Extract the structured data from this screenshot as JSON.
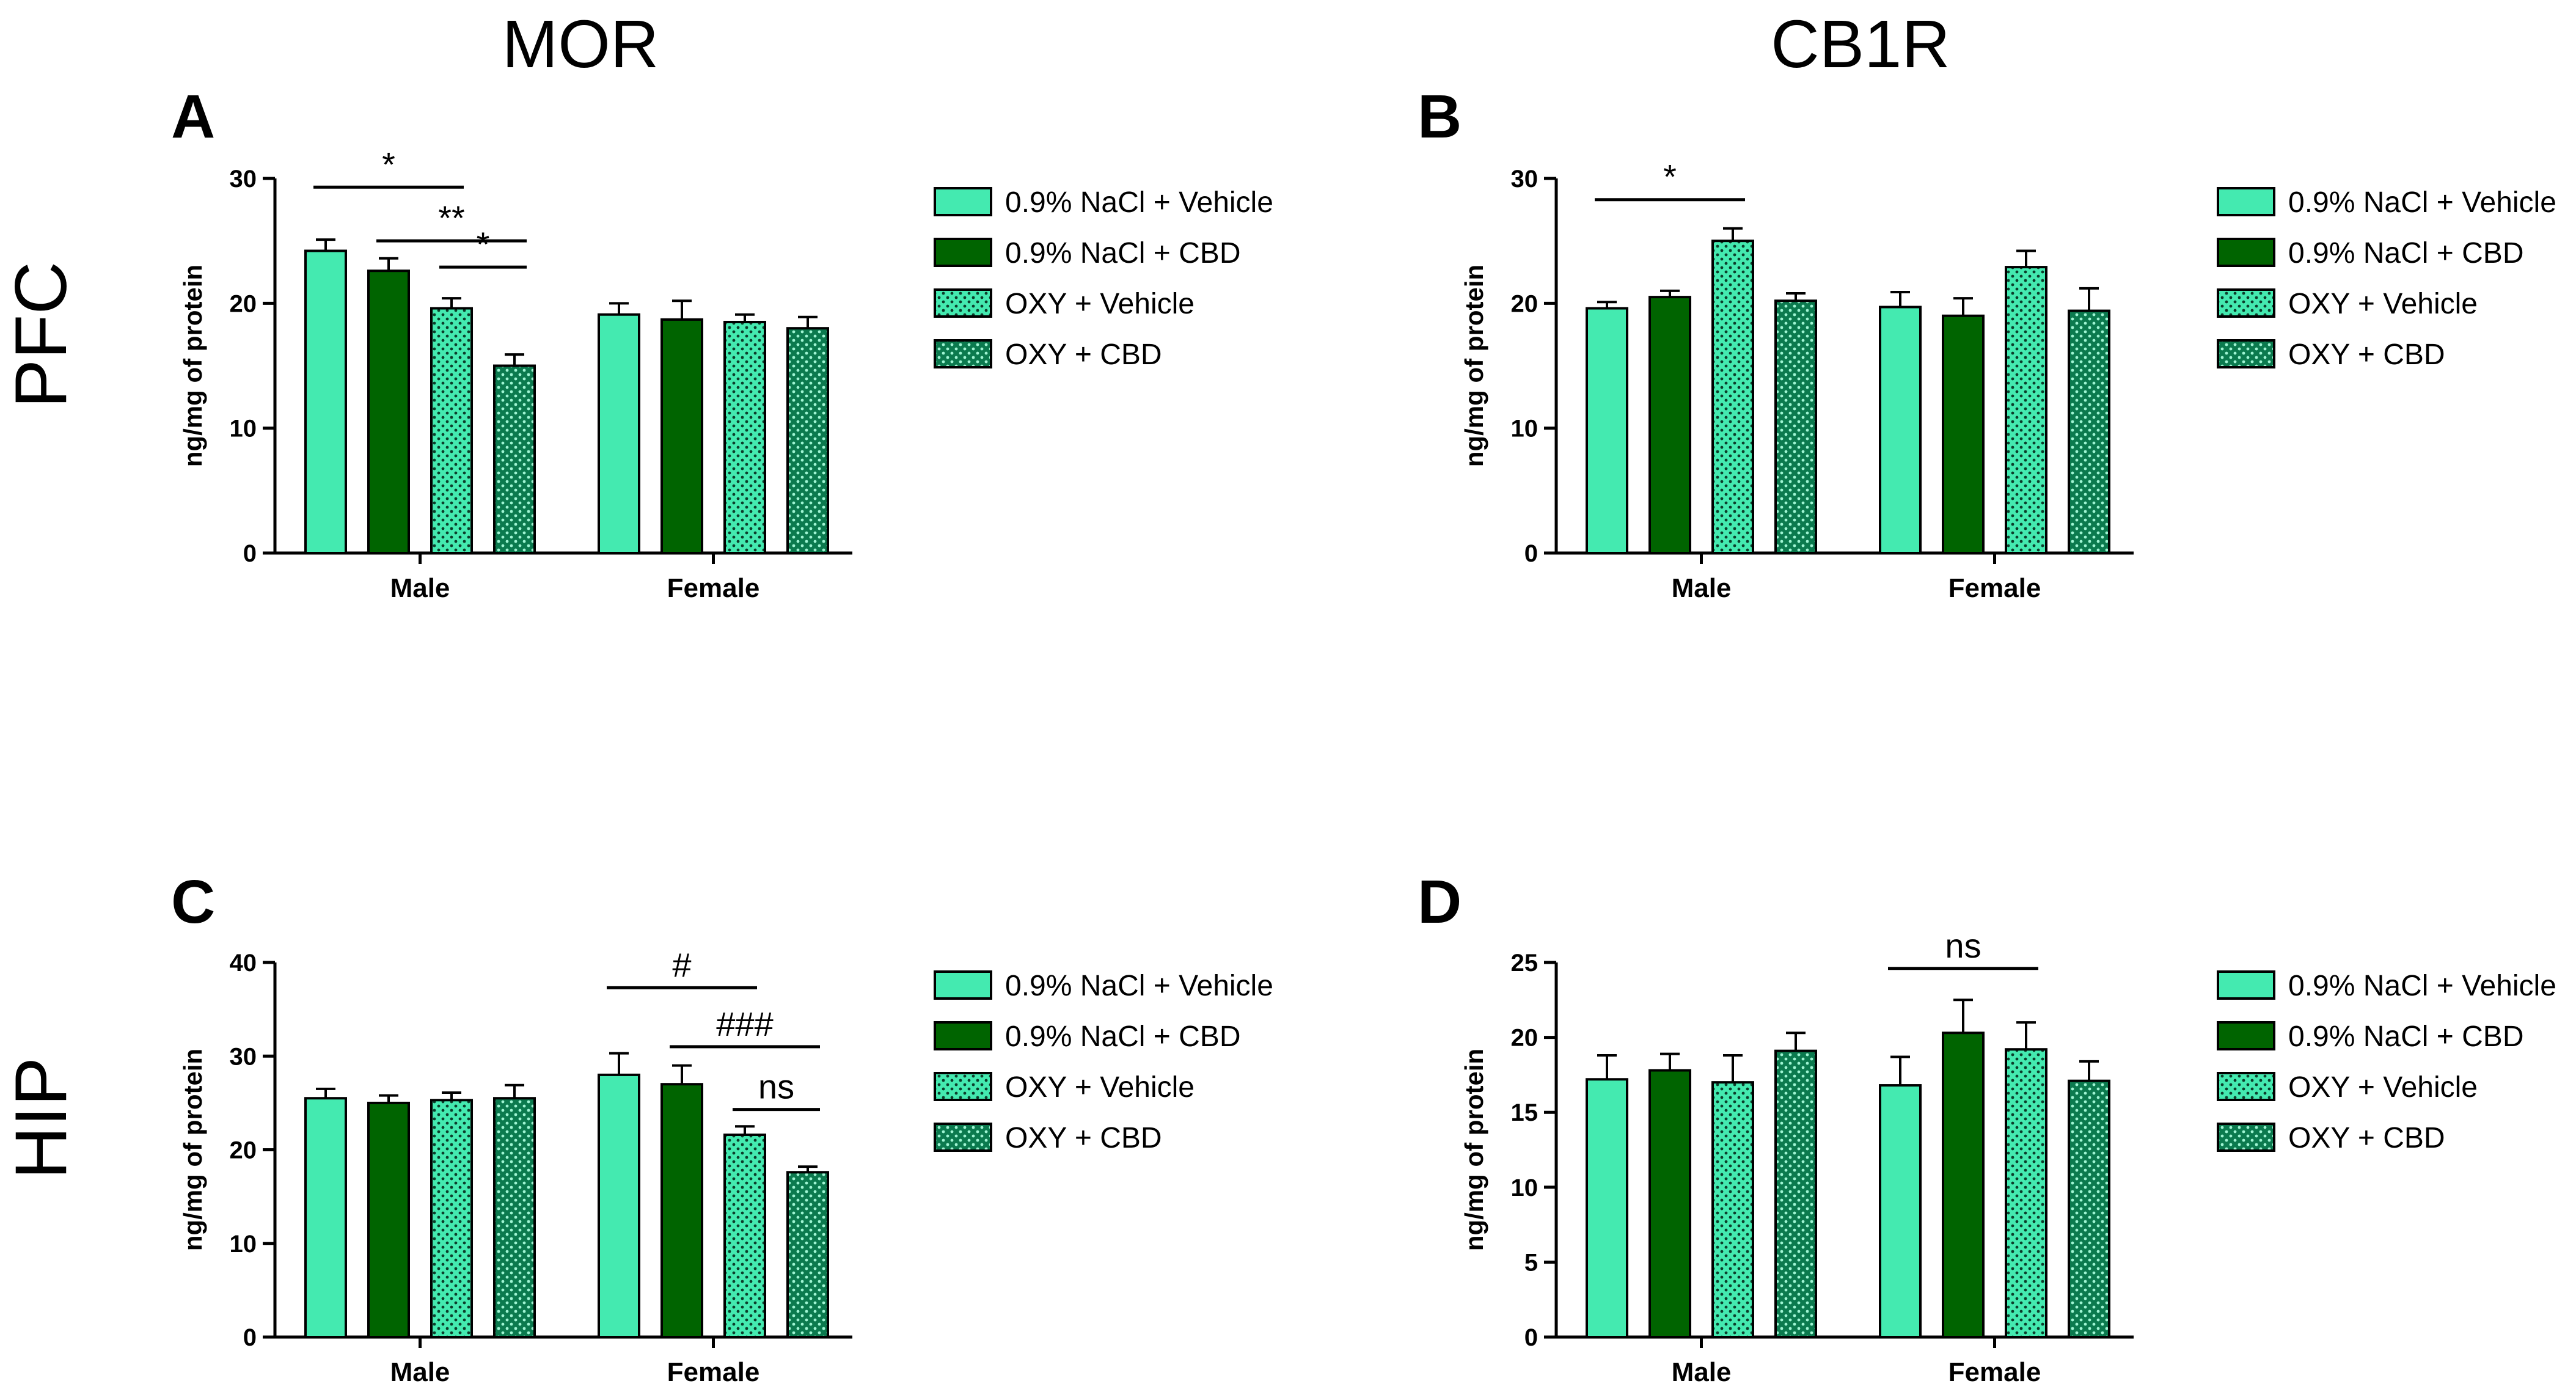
{
  "figure": {
    "column_titles": [
      "MOR",
      "CB1R"
    ],
    "row_titles": [
      "PFC",
      "HIP"
    ]
  },
  "colors": {
    "nacl_vehicle": "#44EAB0",
    "nacl_cbd": "#006400",
    "oxy_vehicle": "#44EAB0",
    "oxy_cbd": "#0B7A4E",
    "dot": "#0b3d2a"
  },
  "legend": [
    {
      "label": "0.9% NaCl + Vehicle",
      "pattern": "solid-light"
    },
    {
      "label": "0.9% NaCl + CBD",
      "pattern": "solid-dark"
    },
    {
      "label": "OXY + Vehicle",
      "pattern": "dotted-light"
    },
    {
      "label": "OXY + CBD",
      "pattern": "dotted-dark"
    }
  ],
  "chart_data": [
    {
      "panel": "A",
      "type": "bar",
      "region": "PFC",
      "receptor": "MOR",
      "ylabel": "ng/mg of protein",
      "ylim": [
        0,
        30
      ],
      "yticks": [
        0,
        10,
        20,
        30
      ],
      "categories": [
        "Male",
        "Female"
      ],
      "series": [
        {
          "name": "0.9% NaCl + Vehicle",
          "values": [
            24.2,
            19.1
          ],
          "errors": [
            0.9,
            0.9
          ]
        },
        {
          "name": "0.9% NaCl + CBD",
          "values": [
            22.6,
            18.7
          ],
          "errors": [
            1.0,
            1.5
          ]
        },
        {
          "name": "OXY + Vehicle",
          "values": [
            19.6,
            18.5
          ],
          "errors": [
            0.8,
            0.6
          ]
        },
        {
          "name": "OXY + CBD",
          "values": [
            15.0,
            18.0
          ],
          "errors": [
            0.9,
            0.9
          ]
        }
      ],
      "annotations": [
        {
          "label": "*",
          "from": [
            0,
            0
          ],
          "to": [
            0,
            2
          ],
          "y": 29.3
        },
        {
          "label": "**",
          "from": [
            0,
            1
          ],
          "to": [
            0,
            3
          ],
          "y": 25.0
        },
        {
          "label": "*",
          "from": [
            0,
            2
          ],
          "to": [
            0,
            3
          ],
          "y": 22.9
        }
      ]
    },
    {
      "panel": "B",
      "type": "bar",
      "region": "PFC",
      "receptor": "CB1R",
      "ylabel": "ng/mg of protein",
      "ylim": [
        0,
        30
      ],
      "yticks": [
        0,
        10,
        20,
        30
      ],
      "categories": [
        "Male",
        "Female"
      ],
      "series": [
        {
          "name": "0.9% NaCl + Vehicle",
          "values": [
            19.6,
            19.7
          ],
          "errors": [
            0.5,
            1.2
          ]
        },
        {
          "name": "0.9% NaCl + CBD",
          "values": [
            20.5,
            19.0
          ],
          "errors": [
            0.5,
            1.4
          ]
        },
        {
          "name": "OXY + Vehicle",
          "values": [
            25.0,
            22.9
          ],
          "errors": [
            1.0,
            1.3
          ]
        },
        {
          "name": "OXY + CBD",
          "values": [
            20.2,
            19.4
          ],
          "errors": [
            0.6,
            1.8
          ]
        }
      ],
      "annotations": [
        {
          "label": "*",
          "from": [
            0,
            0
          ],
          "to": [
            0,
            2
          ],
          "y": 28.3
        }
      ]
    },
    {
      "panel": "C",
      "type": "bar",
      "region": "HIP",
      "receptor": "MOR",
      "ylabel": "ng/mg of protein",
      "ylim": [
        0,
        40
      ],
      "yticks": [
        0,
        10,
        20,
        30,
        40
      ],
      "categories": [
        "Male",
        "Female"
      ],
      "series": [
        {
          "name": "0.9% NaCl + Vehicle",
          "values": [
            25.5,
            28.0
          ],
          "errors": [
            1.0,
            2.3
          ]
        },
        {
          "name": "0.9% NaCl + CBD",
          "values": [
            25.0,
            27.0
          ],
          "errors": [
            0.8,
            2.0
          ]
        },
        {
          "name": "OXY + Vehicle",
          "values": [
            25.3,
            21.6
          ],
          "errors": [
            0.8,
            0.9
          ]
        },
        {
          "name": "OXY + CBD",
          "values": [
            25.5,
            17.6
          ],
          "errors": [
            1.4,
            0.6
          ]
        }
      ],
      "annotations": [
        {
          "label": "#",
          "from": [
            1,
            0
          ],
          "to": [
            1,
            2
          ],
          "y": 37.3
        },
        {
          "label": "###",
          "from": [
            1,
            1
          ],
          "to": [
            1,
            3
          ],
          "y": 31.0
        },
        {
          "label": "ns",
          "from": [
            1,
            2
          ],
          "to": [
            1,
            3
          ],
          "y": 24.3
        }
      ]
    },
    {
      "panel": "D",
      "type": "bar",
      "region": "HIP",
      "receptor": "CB1R",
      "ylabel": "ng/mg of protein",
      "ylim": [
        0,
        25
      ],
      "yticks": [
        0,
        5,
        10,
        15,
        20,
        25
      ],
      "categories": [
        "Male",
        "Female"
      ],
      "series": [
        {
          "name": "0.9% NaCl + Vehicle",
          "values": [
            17.2,
            16.8
          ],
          "errors": [
            1.6,
            1.9
          ]
        },
        {
          "name": "0.9% NaCl + CBD",
          "values": [
            17.8,
            20.3
          ],
          "errors": [
            1.1,
            2.2
          ]
        },
        {
          "name": "OXY + Vehicle",
          "values": [
            17.0,
            19.2
          ],
          "errors": [
            1.8,
            1.8
          ]
        },
        {
          "name": "OXY + CBD",
          "values": [
            19.1,
            17.1
          ],
          "errors": [
            1.2,
            1.3
          ]
        }
      ],
      "annotations": [
        {
          "label": "ns",
          "from": [
            1,
            0
          ],
          "to": [
            1,
            2
          ],
          "y": 24.6
        }
      ]
    }
  ]
}
